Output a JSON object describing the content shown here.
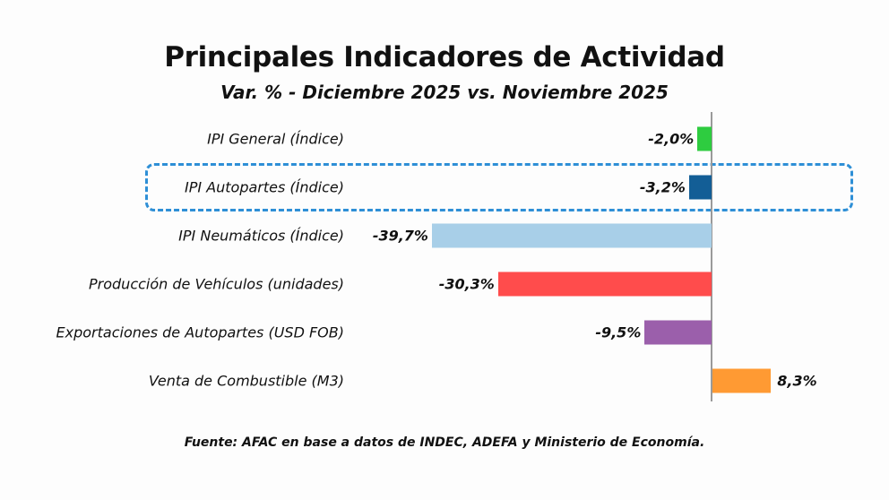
{
  "chart_data": {
    "type": "bar",
    "orientation": "horizontal",
    "title": "Principales Indicadores de Actividad",
    "subtitle": "Var. % - Diciembre 2025 vs. Noviembre 2025",
    "xlabel": "",
    "ylabel": "",
    "categories": [
      "IPI General (Índice)",
      "IPI Autopartes (Índice)",
      "IPI Neumáticos (Índice)",
      "Producción de Vehículos (unidades)",
      "Exportaciones de Autopartes (USD FOB)",
      "Venta de Combustible (M3)"
    ],
    "values": [
      -2.0,
      -3.2,
      -39.7,
      -30.3,
      -9.5,
      8.3
    ],
    "value_labels": [
      "-2,0%",
      "-3,2%",
      "-39,7%",
      "-30,3%",
      "-9,5%",
      "8,3%"
    ],
    "colors": [
      "#2ecc40",
      "#135e96",
      "#a8cfe8",
      "#ff4c4c",
      "#9b5fab",
      "#ff9a33"
    ],
    "highlighted_category": "IPI Autopartes (Índice)",
    "highlight_color": "#2e8fd6",
    "grid": false,
    "source": "Fuente: AFAC en base a datos de INDEC, ADEFA y Ministerio de Economía."
  }
}
